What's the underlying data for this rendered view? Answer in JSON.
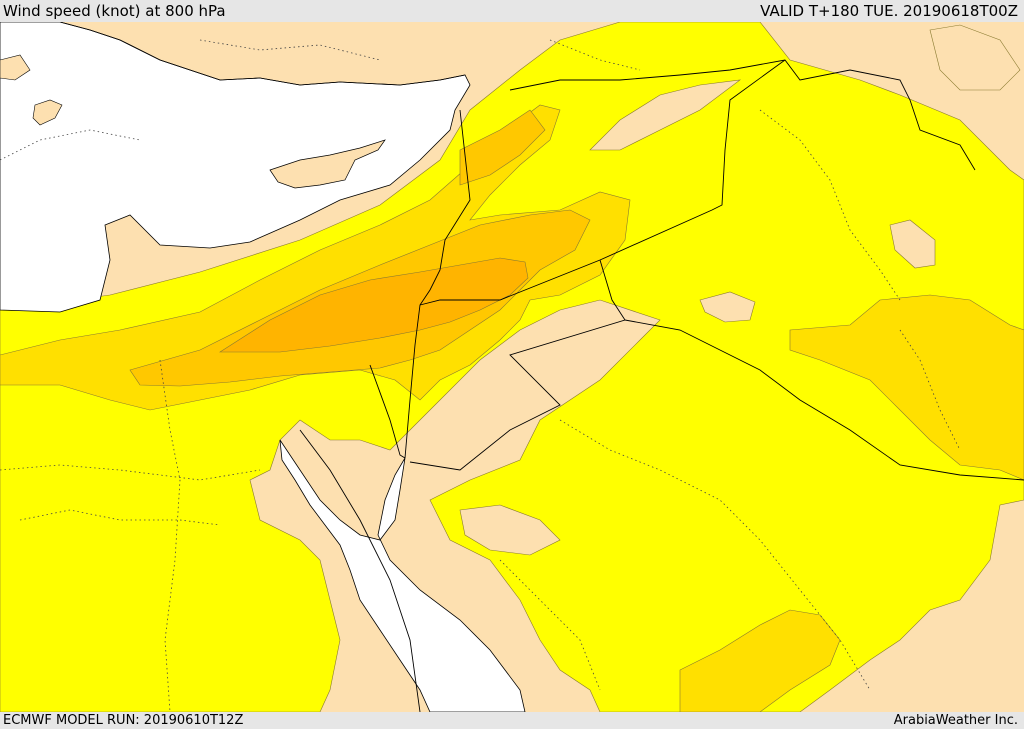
{
  "header": {
    "title": "Wind speed (knot) at 800 hPa",
    "valid": "VALID T+180 TUE. 20190618T00Z"
  },
  "footer": {
    "model_run": "ECMWF MODEL RUN: 20190610T12Z",
    "credit": "ArabiaWeather Inc."
  },
  "colors": {
    "sea": "#ffffff",
    "land_calm": "#fde0b0",
    "band_yellow": "#ffff00",
    "band_gold": "#ffe000",
    "band_amber": "#ffc800",
    "band_orange": "#ffb400"
  }
}
